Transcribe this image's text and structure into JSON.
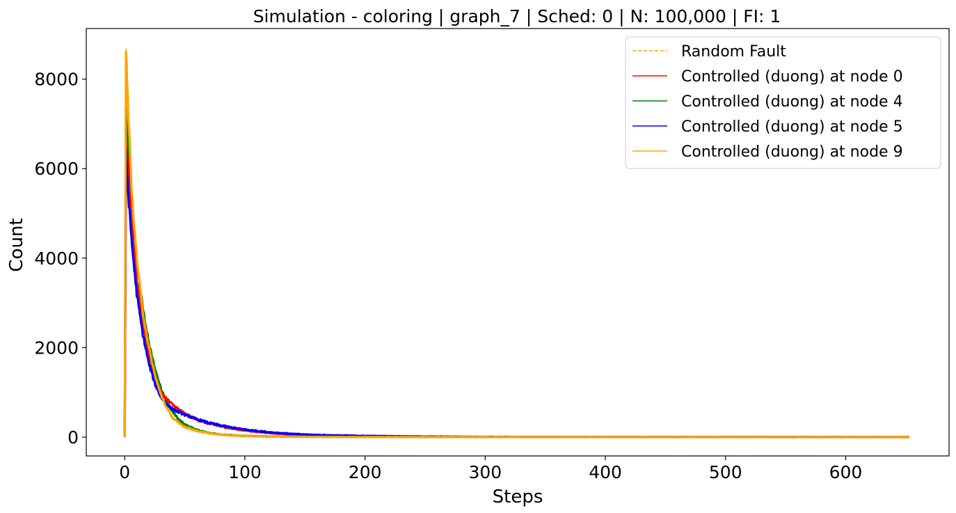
{
  "chart_data": {
    "type": "line",
    "title": "Simulation - coloring | graph_7 | Sched: 0 | N: 100,000 | FI: 1",
    "xlabel": "Steps",
    "ylabel": "Count",
    "xlim": [
      -32,
      686
    ],
    "ylim": [
      -420,
      9130
    ],
    "x_ticks": [
      0,
      100,
      200,
      300,
      400,
      500,
      600
    ],
    "y_ticks": [
      0,
      2000,
      4000,
      6000,
      8000
    ],
    "x_tick_labels": [
      "0",
      "100",
      "200",
      "300",
      "400",
      "500",
      "600"
    ],
    "y_tick_labels": [
      "0",
      "2000",
      "4000",
      "6000",
      "8000"
    ],
    "grid": false,
    "legend_position": "top-right",
    "x_max": 653,
    "series": [
      {
        "name": "Random Fault",
        "color": "#FFA500",
        "style": "dashed",
        "points": [
          [
            0,
            0
          ],
          [
            1,
            8700
          ],
          [
            3,
            7200
          ],
          [
            6,
            5300
          ],
          [
            10,
            3900
          ],
          [
            15,
            2800
          ],
          [
            20,
            2000
          ],
          [
            25,
            1400
          ],
          [
            30,
            1000
          ],
          [
            35,
            700
          ],
          [
            40,
            450
          ],
          [
            50,
            250
          ],
          [
            60,
            150
          ],
          [
            70,
            90
          ],
          [
            80,
            60
          ],
          [
            100,
            30
          ],
          [
            150,
            12
          ],
          [
            200,
            6
          ],
          [
            653,
            0
          ]
        ]
      },
      {
        "name": "Controlled (duong) at node 0",
        "color": "#FF0000",
        "style": "solid",
        "points": [
          [
            0,
            0
          ],
          [
            1,
            6600
          ],
          [
            3,
            5900
          ],
          [
            6,
            4700
          ],
          [
            10,
            3500
          ],
          [
            15,
            2500
          ],
          [
            20,
            1850
          ],
          [
            25,
            1350
          ],
          [
            30,
            1000
          ],
          [
            35,
            850
          ],
          [
            40,
            720
          ],
          [
            45,
            620
          ],
          [
            50,
            520
          ],
          [
            60,
            390
          ],
          [
            70,
            300
          ],
          [
            80,
            240
          ],
          [
            90,
            190
          ],
          [
            100,
            150
          ],
          [
            110,
            120
          ],
          [
            120,
            95
          ],
          [
            130,
            75
          ],
          [
            140,
            60
          ],
          [
            150,
            48
          ],
          [
            170,
            32
          ],
          [
            200,
            18
          ],
          [
            250,
            8
          ],
          [
            300,
            4
          ],
          [
            400,
            2
          ],
          [
            653,
            0
          ]
        ]
      },
      {
        "name": "Controlled (duong) at node 4",
        "color": "#008000",
        "style": "solid",
        "points": [
          [
            0,
            0
          ],
          [
            1,
            7300
          ],
          [
            3,
            6300
          ],
          [
            6,
            5000
          ],
          [
            10,
            3900
          ],
          [
            15,
            2900
          ],
          [
            20,
            2100
          ],
          [
            25,
            1550
          ],
          [
            30,
            1100
          ],
          [
            35,
            800
          ],
          [
            40,
            560
          ],
          [
            45,
            390
          ],
          [
            50,
            280
          ],
          [
            60,
            160
          ],
          [
            70,
            95
          ],
          [
            80,
            60
          ],
          [
            90,
            40
          ],
          [
            100,
            28
          ],
          [
            120,
            15
          ],
          [
            150,
            8
          ],
          [
            200,
            4
          ],
          [
            653,
            0
          ]
        ]
      },
      {
        "name": "Controlled (duong) at node 5",
        "color": "#0000FF",
        "style": "solid",
        "points": [
          [
            0,
            0
          ],
          [
            1,
            6400
          ],
          [
            3,
            5400
          ],
          [
            6,
            4300
          ],
          [
            10,
            3200
          ],
          [
            15,
            2300
          ],
          [
            20,
            1650
          ],
          [
            25,
            1200
          ],
          [
            30,
            900
          ],
          [
            35,
            730
          ],
          [
            40,
            620
          ],
          [
            45,
            560
          ],
          [
            50,
            500
          ],
          [
            60,
            400
          ],
          [
            70,
            320
          ],
          [
            80,
            260
          ],
          [
            90,
            210
          ],
          [
            100,
            170
          ],
          [
            110,
            140
          ],
          [
            120,
            110
          ],
          [
            130,
            90
          ],
          [
            140,
            72
          ],
          [
            150,
            58
          ],
          [
            170,
            42
          ],
          [
            200,
            28
          ],
          [
            250,
            14
          ],
          [
            300,
            7
          ],
          [
            400,
            3
          ],
          [
            653,
            0
          ]
        ]
      },
      {
        "name": "Controlled (duong) at node 9",
        "color": "#FFA500",
        "style": "solid",
        "points": [
          [
            0,
            0
          ],
          [
            1,
            8700
          ],
          [
            3,
            7200
          ],
          [
            6,
            5400
          ],
          [
            10,
            4000
          ],
          [
            15,
            2800
          ],
          [
            20,
            2000
          ],
          [
            25,
            1400
          ],
          [
            30,
            950
          ],
          [
            35,
            650
          ],
          [
            40,
            430
          ],
          [
            45,
            310
          ],
          [
            50,
            230
          ],
          [
            60,
            140
          ],
          [
            70,
            85
          ],
          [
            80,
            55
          ],
          [
            90,
            38
          ],
          [
            100,
            25
          ],
          [
            120,
            14
          ],
          [
            150,
            8
          ],
          [
            200,
            4
          ],
          [
            653,
            0
          ]
        ]
      }
    ]
  }
}
